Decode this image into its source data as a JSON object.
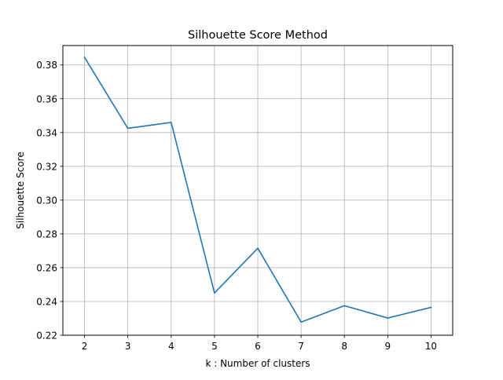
{
  "chart_data": {
    "type": "line",
    "title": "Silhouette Score Method",
    "xlabel": "k : Number of clusters",
    "ylabel": "Silhouette Score",
    "x": [
      2,
      3,
      4,
      5,
      6,
      7,
      8,
      9,
      10
    ],
    "series": [
      {
        "values": [
          0.3845,
          0.3425,
          0.346,
          0.245,
          0.2715,
          0.2278,
          0.2375,
          0.2302,
          0.2365
        ]
      }
    ],
    "xlim": [
      1.5,
      10.5
    ],
    "ylim": [
      0.22,
      0.3915
    ],
    "xticks": [
      2,
      3,
      4,
      5,
      6,
      7,
      8,
      9,
      10
    ],
    "yticks": [
      0.22,
      0.24,
      0.26,
      0.28,
      0.3,
      0.32,
      0.34,
      0.36,
      0.38
    ],
    "xtick_labels": [
      "2",
      "3",
      "4",
      "5",
      "6",
      "7",
      "8",
      "9",
      "10"
    ],
    "ytick_labels": [
      "0.22",
      "0.24",
      "0.26",
      "0.28",
      "0.30",
      "0.32",
      "0.34",
      "0.36",
      "0.38"
    ],
    "grid": true,
    "line_color": "#1f77b4",
    "grid_color": "#b0b0b0"
  }
}
